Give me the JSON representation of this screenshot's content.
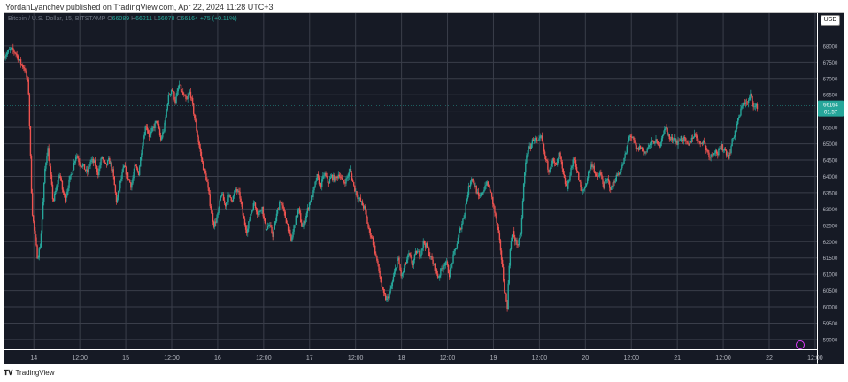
{
  "header_note": "YordanLyanchev published on TradingView.com, Apr 22, 2024 11:28 UTC+3",
  "legend": {
    "symbol": "Bitcoin / U.S. Dollar, 15, BITSTAMP",
    "o_label": "O",
    "o_value": "66089",
    "h_label": "H",
    "h_value": "66211",
    "l_label": "L",
    "l_value": "66078",
    "c_label": "C",
    "c_value": "66164",
    "change": "+75 (+0.11%)"
  },
  "currency": "USD",
  "footer": {
    "brand": "TradingView"
  },
  "colors": {
    "background": "#161a25",
    "grid": "#3a3e4a",
    "up": "#26a69a",
    "down": "#ef5350",
    "axis_text": "#b2b5be",
    "price_tag": "#26a69a"
  },
  "chart_data": {
    "type": "candlestick",
    "title": "Bitcoin / U.S. Dollar, 15, BITSTAMP",
    "ylim": [
      58700,
      69000
    ],
    "y_ticks": [
      59000,
      59500,
      60000,
      60500,
      61000,
      61500,
      62000,
      62500,
      63000,
      63500,
      64000,
      64500,
      65000,
      65500,
      66000,
      66500,
      67000,
      67500,
      68000
    ],
    "x_range": [
      0,
      8.84
    ],
    "x_ticks": [
      {
        "x": 0.32,
        "label": "14"
      },
      {
        "x": 0.82,
        "label": "12:00"
      },
      {
        "x": 1.32,
        "label": "15"
      },
      {
        "x": 1.82,
        "label": "12:00"
      },
      {
        "x": 2.32,
        "label": "16"
      },
      {
        "x": 2.82,
        "label": "12:00"
      },
      {
        "x": 3.32,
        "label": "17"
      },
      {
        "x": 3.82,
        "label": "12:00"
      },
      {
        "x": 4.32,
        "label": "18"
      },
      {
        "x": 4.82,
        "label": "12:00"
      },
      {
        "x": 5.32,
        "label": "19"
      },
      {
        "x": 5.82,
        "label": "12:00"
      },
      {
        "x": 6.32,
        "label": "20"
      },
      {
        "x": 6.82,
        "label": "12:00"
      },
      {
        "x": 7.32,
        "label": "21"
      },
      {
        "x": 7.82,
        "label": "12:00"
      },
      {
        "x": 8.32,
        "label": "22"
      },
      {
        "x": 8.82,
        "label": "12:00"
      }
    ],
    "grid": true,
    "price_tag": {
      "value": 66164,
      "label": "66164",
      "countdown": "01:57"
    },
    "price_path": [
      [
        0.0,
        67700
      ],
      [
        0.07,
        67900
      ],
      [
        0.12,
        67800
      ],
      [
        0.17,
        67500
      ],
      [
        0.22,
        67300
      ],
      [
        0.26,
        66800
      ],
      [
        0.3,
        63000
      ],
      [
        0.33,
        62200
      ],
      [
        0.36,
        61500
      ],
      [
        0.39,
        61900
      ],
      [
        0.41,
        62700
      ],
      [
        0.44,
        64200
      ],
      [
        0.47,
        64900
      ],
      [
        0.5,
        64100
      ],
      [
        0.53,
        63200
      ],
      [
        0.57,
        63700
      ],
      [
        0.6,
        64100
      ],
      [
        0.63,
        63600
      ],
      [
        0.66,
        63300
      ],
      [
        0.7,
        63800
      ],
      [
        0.74,
        64200
      ],
      [
        0.78,
        64700
      ],
      [
        0.82,
        64400
      ],
      [
        0.86,
        64300
      ],
      [
        0.9,
        64100
      ],
      [
        0.94,
        64500
      ],
      [
        0.98,
        64400
      ],
      [
        1.02,
        64100
      ],
      [
        1.06,
        64600
      ],
      [
        1.1,
        64300
      ],
      [
        1.14,
        64500
      ],
      [
        1.18,
        64100
      ],
      [
        1.22,
        63200
      ],
      [
        1.26,
        63800
      ],
      [
        1.3,
        64300
      ],
      [
        1.34,
        64000
      ],
      [
        1.38,
        63700
      ],
      [
        1.42,
        64300
      ],
      [
        1.46,
        64100
      ],
      [
        1.5,
        65000
      ],
      [
        1.54,
        65600
      ],
      [
        1.58,
        65200
      ],
      [
        1.62,
        65500
      ],
      [
        1.66,
        65700
      ],
      [
        1.7,
        65100
      ],
      [
        1.74,
        65500
      ],
      [
        1.78,
        66400
      ],
      [
        1.82,
        66700
      ],
      [
        1.86,
        66300
      ],
      [
        1.9,
        66800
      ],
      [
        1.94,
        66500
      ],
      [
        1.98,
        66300
      ],
      [
        2.02,
        66600
      ],
      [
        2.05,
        66100
      ],
      [
        2.08,
        65600
      ],
      [
        2.12,
        64900
      ],
      [
        2.16,
        64300
      ],
      [
        2.2,
        63900
      ],
      [
        2.24,
        63100
      ],
      [
        2.28,
        62500
      ],
      [
        2.32,
        62800
      ],
      [
        2.36,
        63500
      ],
      [
        2.4,
        63100
      ],
      [
        2.44,
        63400
      ],
      [
        2.48,
        63300
      ],
      [
        2.52,
        63600
      ],
      [
        2.56,
        63400
      ],
      [
        2.6,
        62700
      ],
      [
        2.64,
        62300
      ],
      [
        2.68,
        62900
      ],
      [
        2.72,
        63200
      ],
      [
        2.76,
        62800
      ],
      [
        2.8,
        63100
      ],
      [
        2.84,
        62400
      ],
      [
        2.88,
        62500
      ],
      [
        2.92,
        62200
      ],
      [
        2.96,
        62800
      ],
      [
        3.0,
        63300
      ],
      [
        3.04,
        62900
      ],
      [
        3.08,
        62500
      ],
      [
        3.12,
        62000
      ],
      [
        3.16,
        62600
      ],
      [
        3.2,
        63000
      ],
      [
        3.24,
        62400
      ],
      [
        3.28,
        62800
      ],
      [
        3.32,
        63200
      ],
      [
        3.36,
        63500
      ],
      [
        3.4,
        64000
      ],
      [
        3.44,
        63700
      ],
      [
        3.48,
        64100
      ],
      [
        3.52,
        63800
      ],
      [
        3.56,
        64000
      ],
      [
        3.6,
        63900
      ],
      [
        3.64,
        64100
      ],
      [
        3.68,
        63800
      ],
      [
        3.72,
        63900
      ],
      [
        3.76,
        64200
      ],
      [
        3.8,
        63700
      ],
      [
        3.84,
        63400
      ],
      [
        3.88,
        63200
      ],
      [
        3.92,
        63000
      ],
      [
        3.96,
        62400
      ],
      [
        4.0,
        62100
      ],
      [
        4.04,
        61600
      ],
      [
        4.08,
        61000
      ],
      [
        4.12,
        60400
      ],
      [
        4.16,
        60200
      ],
      [
        4.2,
        60500
      ],
      [
        4.24,
        61000
      ],
      [
        4.28,
        61500
      ],
      [
        4.32,
        60900
      ],
      [
        4.36,
        61300
      ],
      [
        4.4,
        61600
      ],
      [
        4.44,
        61300
      ],
      [
        4.48,
        61700
      ],
      [
        4.52,
        61600
      ],
      [
        4.56,
        62000
      ],
      [
        4.6,
        61800
      ],
      [
        4.64,
        61500
      ],
      [
        4.68,
        61200
      ],
      [
        4.72,
        60900
      ],
      [
        4.76,
        61200
      ],
      [
        4.8,
        61400
      ],
      [
        4.84,
        61000
      ],
      [
        4.88,
        61500
      ],
      [
        4.92,
        61900
      ],
      [
        4.96,
        62400
      ],
      [
        5.0,
        62800
      ],
      [
        5.04,
        63500
      ],
      [
        5.08,
        64000
      ],
      [
        5.12,
        63700
      ],
      [
        5.16,
        63300
      ],
      [
        5.2,
        63500
      ],
      [
        5.24,
        63800
      ],
      [
        5.28,
        63600
      ],
      [
        5.32,
        63100
      ],
      [
        5.36,
        62500
      ],
      [
        5.4,
        61700
      ],
      [
        5.44,
        60500
      ],
      [
        5.47,
        60000
      ],
      [
        5.5,
        61800
      ],
      [
        5.53,
        62300
      ],
      [
        5.56,
        62000
      ],
      [
        5.59,
        61900
      ],
      [
        5.62,
        62300
      ],
      [
        5.65,
        63800
      ],
      [
        5.68,
        64700
      ],
      [
        5.72,
        64900
      ],
      [
        5.76,
        65200
      ],
      [
        5.8,
        65000
      ],
      [
        5.84,
        65200
      ],
      [
        5.88,
        64600
      ],
      [
        5.92,
        64200
      ],
      [
        5.96,
        64500
      ],
      [
        6.0,
        64300
      ],
      [
        6.04,
        64700
      ],
      [
        6.08,
        64000
      ],
      [
        6.12,
        63600
      ],
      [
        6.16,
        64200
      ],
      [
        6.2,
        64600
      ],
      [
        6.24,
        64000
      ],
      [
        6.28,
        63500
      ],
      [
        6.32,
        63700
      ],
      [
        6.36,
        64200
      ],
      [
        6.4,
        64400
      ],
      [
        6.44,
        63900
      ],
      [
        6.48,
        64100
      ],
      [
        6.52,
        63700
      ],
      [
        6.56,
        63900
      ],
      [
        6.6,
        63600
      ],
      [
        6.64,
        63900
      ],
      [
        6.68,
        64100
      ],
      [
        6.72,
        64300
      ],
      [
        6.76,
        64700
      ],
      [
        6.8,
        65300
      ],
      [
        6.84,
        65100
      ],
      [
        6.88,
        64800
      ],
      [
        6.92,
        64900
      ],
      [
        6.96,
        64700
      ],
      [
        7.0,
        64900
      ],
      [
        7.04,
        65000
      ],
      [
        7.08,
        65100
      ],
      [
        7.12,
        64900
      ],
      [
        7.16,
        65300
      ],
      [
        7.2,
        65500
      ],
      [
        7.24,
        65100
      ],
      [
        7.28,
        65200
      ],
      [
        7.32,
        65000
      ],
      [
        7.36,
        65200
      ],
      [
        7.4,
        65100
      ],
      [
        7.44,
        64900
      ],
      [
        7.48,
        65200
      ],
      [
        7.52,
        65300
      ],
      [
        7.56,
        65000
      ],
      [
        7.6,
        65100
      ],
      [
        7.64,
        64800
      ],
      [
        7.68,
        64600
      ],
      [
        7.72,
        64800
      ],
      [
        7.76,
        64700
      ],
      [
        7.8,
        64900
      ],
      [
        7.84,
        64800
      ],
      [
        7.88,
        64600
      ],
      [
        7.92,
        65100
      ],
      [
        7.96,
        65500
      ],
      [
        8.0,
        65900
      ],
      [
        8.04,
        66300
      ],
      [
        8.08,
        66200
      ],
      [
        8.12,
        66500
      ],
      [
        8.16,
        66100
      ],
      [
        8.2,
        66164
      ]
    ]
  }
}
